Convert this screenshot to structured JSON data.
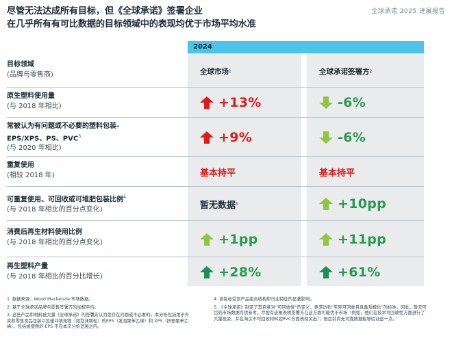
{
  "title_line1": "尽管无法达成所有目标，但《全球承诺》签署企业",
  "title_line2": "在几乎所有有可比数据的目标领域中的表现均优于市场平均水准",
  "header_tag": "全球承诺 2025 进展报告",
  "year": "2024",
  "header": {
    "label_main": "目标领域",
    "label_sub": "(品牌与零售商)",
    "col_a": "全球市场",
    "col_a_sup": "1",
    "col_b": "全球承诺签署方",
    "col_b_sup": "2"
  },
  "rows": [
    {
      "label": "原生塑料使用量",
      "sup": "",
      "sub": "(与 2018 年相比)",
      "a": "+13%",
      "b": "-6%"
    },
    {
      "label": "常被认为有问题或不必要的塑料包装-",
      "label2": "EPS/XPS、PS、PVC",
      "sup": "3",
      "sub": "(与 2020 年相比)",
      "a": "+9%",
      "b": "-6%"
    },
    {
      "label": "重复使用",
      "sup": "",
      "sub": "(相较 2018 年)",
      "a": "基本持平",
      "b": "基本持平"
    },
    {
      "label": "可重复使用、可回收或可堆肥包装比例",
      "sup": "4",
      "sub": "(与 2018 年相比的百分点变化)",
      "a": "暂无数据",
      "a_sup": "5",
      "b": "+10pp"
    },
    {
      "label": "消费后再生材料使用比例",
      "sup": "",
      "sub": "(与 2018 年相比的百分点变化)",
      "a": "+1pp",
      "b": "+11pp"
    },
    {
      "label": "再生塑料产量",
      "sup": "",
      "sub": "(与 2018 年相比的百分比增长)",
      "a": "+28%",
      "b": "+61%"
    }
  ],
  "notes_left": [
    "1. 数据来源：Wood Mackenzie 市场数据。",
    "2. 基于全球承诺品牌与零售签署方的加权平均。",
    "3. 这些产品和材料被大量《全球承诺》的签署方认为是存在问题或不必要的。本分析包括用于外卖和零售食品包装以及缓冲填充物（如泡沫颗粒）的EPS（发泡聚苯乙烯）和 XPS（挤塑聚苯乙烯）。包括被使用的 EPS 不在本次分析范围之内。"
  ],
  "notes_right": [
    "4. 该指标受到产品组合结构和行业特征的显著影响。",
    "5. 《全球承诺》制定了其自身对“可回收性”的定义，要求达到“实际可回收且具备规模化”的标准。因此，暂无可比的市场数据可供参考。尽管有迹象表明签署方在这方面可能优于市场（例如，他们在技术可回收性方面进行了大量投资，并在淘汰不可回收材料如PVC方面表现突出），但目前尚无可靠数据能够验证这一点。"
  ],
  "colors": {
    "red": "#e11919",
    "green": "#2a9a52",
    "band": "#4cc3e8",
    "column": "#e9ebec"
  }
}
